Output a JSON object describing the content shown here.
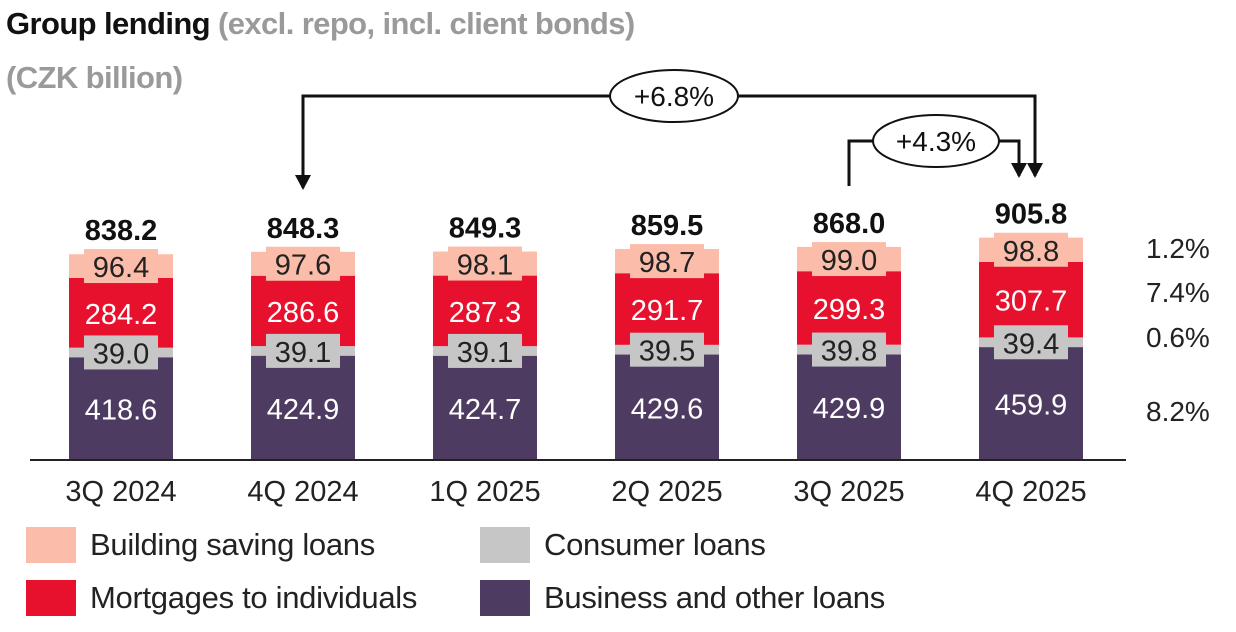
{
  "title": {
    "main": "Group lending",
    "sub": "(excl. repo, incl. client bonds)",
    "unit": "(CZK billion)"
  },
  "colors": {
    "building": "#fcbcaa",
    "mortgages": "#e8112d",
    "consumer": "#c6c6c6",
    "business": "#4e3b62",
    "axis": "#222222"
  },
  "chart_data": {
    "type": "bar",
    "stacked": true,
    "categories": [
      "3Q 2024",
      "4Q 2024",
      "1Q 2025",
      "2Q 2025",
      "3Q 2025",
      "4Q 2025"
    ],
    "series": [
      {
        "name": "Business and other loans",
        "color_key": "business",
        "values": [
          418.6,
          424.9,
          424.7,
          429.6,
          429.9,
          459.9
        ],
        "labels": [
          "418.6",
          "424.9",
          "424.7",
          "429.6",
          "429.9",
          "459.9"
        ]
      },
      {
        "name": "Consumer loans",
        "color_key": "consumer",
        "values": [
          39.0,
          39.1,
          39.1,
          39.5,
          39.8,
          39.4
        ],
        "labels": [
          "39.0",
          "39.1",
          "39.1",
          "39.5",
          "39.8",
          "39.4"
        ]
      },
      {
        "name": "Mortgages to individuals",
        "color_key": "mortgages",
        "values": [
          284.2,
          286.6,
          287.3,
          291.7,
          299.3,
          307.7
        ],
        "labels": [
          "284.2",
          "286.6",
          "287.3",
          "291.7",
          "299.3",
          "307.7"
        ]
      },
      {
        "name": "Building saving loans",
        "color_key": "building",
        "values": [
          96.4,
          97.6,
          98.1,
          98.7,
          99.0,
          98.8
        ],
        "labels": [
          "96.4",
          "97.6",
          "98.1",
          "98.7",
          "99.0",
          "98.8"
        ]
      }
    ],
    "totals": [
      "838.2",
      "848.3",
      "849.3",
      "859.5",
      "868.0",
      "905.8"
    ],
    "total_values": [
      838.2,
      848.3,
      849.3,
      859.5,
      868.0,
      905.8
    ],
    "growth_annotations": [
      {
        "label": "+6.8%",
        "from_category": "4Q 2024",
        "to_category": "4Q 2025"
      },
      {
        "label": "+4.3%",
        "from_category": "3Q 2025",
        "to_category": "4Q 2025"
      }
    ],
    "segment_growth_labels": [
      {
        "series": "Building saving loans",
        "label": "1.2%"
      },
      {
        "series": "Mortgages to individuals",
        "label": "7.4%"
      },
      {
        "series": "Consumer loans",
        "label": "0.6%"
      },
      {
        "series": "Business and other loans",
        "label": "8.2%"
      }
    ],
    "legend": {
      "position": "bottom",
      "items": [
        {
          "label": "Building saving loans",
          "color_key": "building"
        },
        {
          "label": "Consumer loans",
          "color_key": "consumer"
        },
        {
          "label": "Mortgages to individuals",
          "color_key": "mortgages"
        },
        {
          "label": "Business and other loans",
          "color_key": "business"
        }
      ]
    },
    "ylim": [
      0,
      1000
    ],
    "grid": false
  }
}
